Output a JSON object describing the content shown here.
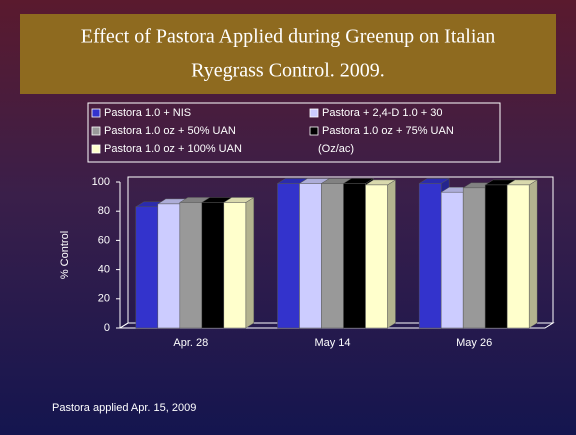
{
  "chart_data": {
    "type": "bar3d",
    "title_lines": [
      "Effect of Pastora Applied during Greenup on Italian",
      "Ryegrass Control. 2009."
    ],
    "y_label": "% Control",
    "legend_note": "(Oz/ac)",
    "footnote": "Pastora applied Apr. 15, 2009",
    "categories": [
      "Apr. 28",
      "May 14",
      "May 26"
    ],
    "series": [
      {
        "name": "Pastora 1.0 + NIS",
        "color": "#3333cc",
        "values": [
          83,
          99,
          99
        ]
      },
      {
        "name": "Pastora + 2,4-D 1.0 + 30",
        "color": "#ccccff",
        "values": [
          85,
          99,
          93
        ]
      },
      {
        "name": "Pastora 1.0 oz + 50% UAN",
        "color": "#999999",
        "values": [
          86,
          99,
          96
        ]
      },
      {
        "name": "Pastora 1.0 oz + 75% UAN",
        "color": "#000000",
        "values": [
          86,
          99,
          98
        ]
      },
      {
        "name": "Pastora 1.0 oz + 100% UAN",
        "color": "#ffffcc",
        "values": [
          86,
          98,
          98
        ]
      }
    ],
    "ylim": [
      0,
      100
    ],
    "yticks": [
      0,
      20,
      40,
      60,
      80,
      100
    ],
    "grid": false
  }
}
